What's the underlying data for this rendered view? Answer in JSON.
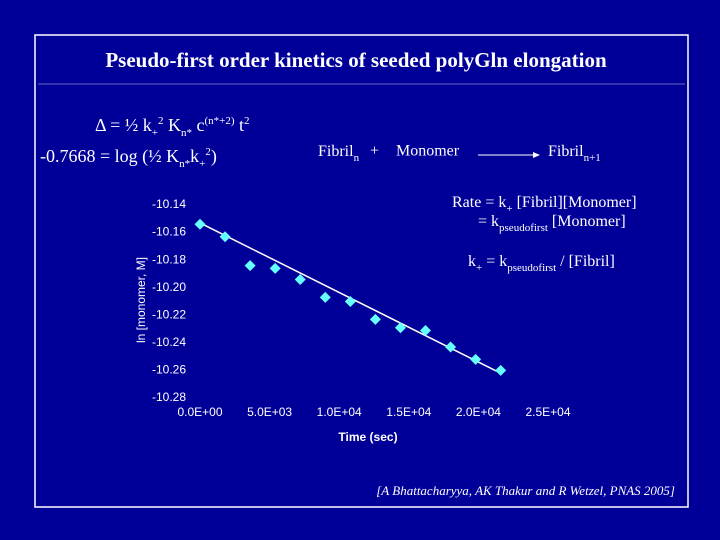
{
  "slide": {
    "title": "Pseudo-first order kinetics of seeded polyGln elongation",
    "equation1": [
      "Δ = ½ k",
      "+",
      "2",
      " K",
      "n*",
      " c",
      "(n*+2)",
      " t",
      "2"
    ],
    "equation2": [
      "-0.7668 = log (½ K",
      "n*",
      "k",
      "+",
      "2",
      ")"
    ],
    "reaction": [
      "Fibril",
      "n",
      "+",
      "Monomer",
      "Fibril",
      "n+1"
    ],
    "rate1": [
      "Rate = k",
      "+",
      " [Fibril][Monomer]"
    ],
    "rate2": [
      "= k",
      "pseudofirst",
      " [Monomer]"
    ],
    "rate3": [
      "k",
      "+",
      " = k",
      "pseudofirst",
      " / [Fibril]"
    ],
    "citation": "[A Bhattacharyya, AK Thakur and R Wetzel, PNAS 2005]"
  },
  "chart_data": {
    "type": "scatter",
    "x_label": "Time (sec)",
    "y_label": "ln [monomer, M]",
    "x": [
      0,
      1800,
      3600,
      5400,
      7200,
      9000,
      10800,
      12600,
      14400,
      16200,
      18000,
      19800,
      21600
    ],
    "series": [
      {
        "color": "#66ffff",
        "values": [
          -10.154,
          -10.163,
          -10.184,
          -10.186,
          -10.194,
          -10.207,
          -10.21,
          -10.223,
          -10.229,
          -10.231,
          -10.243,
          -10.252,
          -10.26
        ]
      }
    ],
    "trendline": {
      "color": "#ffffff",
      "x": [
        0,
        21600
      ],
      "values": [
        -10.153,
        -10.262
      ]
    },
    "xlim": [
      0,
      25000
    ],
    "xticks": [
      {
        "value": 0,
        "label": "0.0E+00"
      },
      {
        "value": 5000,
        "label": "5.0E+03"
      },
      {
        "value": 10000,
        "label": "1.0E+04"
      },
      {
        "value": 15000,
        "label": "1.5E+04"
      },
      {
        "value": 20000,
        "label": "2.0E+04"
      },
      {
        "value": 25000,
        "label": "2.5E+04"
      }
    ],
    "ylim": [
      -10.28,
      -10.14
    ],
    "yticks": [
      -10.28,
      -10.26,
      -10.24,
      -10.22,
      {
        "value": -10.2,
        "label": "-10.20"
      },
      -10.18,
      -10.16,
      -10.14
    ]
  }
}
